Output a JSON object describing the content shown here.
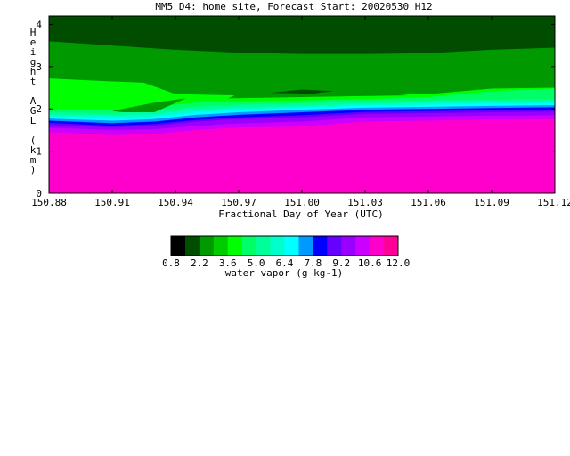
{
  "chart_data": {
    "type": "heatmap",
    "title": "MM5_D4: home site,  Forecast Start: 20020530 H12",
    "xlabel": "Fractional Day of Year (UTC)",
    "ylabel": "Height AGL (km)",
    "xlim": [
      150.88,
      151.12
    ],
    "ylim": [
      0,
      4.2
    ],
    "xticks": [
      "150.88",
      "150.91",
      "150.94",
      "150.97",
      "151.00",
      "151.03",
      "151.06",
      "151.09",
      "151.12"
    ],
    "yticks": [
      "0",
      "1",
      "2",
      "3",
      "4"
    ],
    "colorbar": {
      "label": "water vapor (g kg-1)",
      "tick_labels": [
        "0.8",
        "2.2",
        "3.6",
        "5.0",
        "6.4",
        "7.8",
        "9.2",
        "10.6",
        "12.0"
      ],
      "levels": [
        0.8,
        2.2,
        3.6,
        5.0,
        6.4,
        7.8,
        9.2,
        10.6,
        12.0
      ],
      "bins": [
        {
          "min": 0.8,
          "max": 1.5,
          "color": "#000000"
        },
        {
          "min": 1.5,
          "max": 2.2,
          "color": "#004d00"
        },
        {
          "min": 2.2,
          "max": 2.9,
          "color": "#009900"
        },
        {
          "min": 2.9,
          "max": 3.6,
          "color": "#00cc00"
        },
        {
          "min": 3.6,
          "max": 4.3,
          "color": "#00ff00"
        },
        {
          "min": 4.3,
          "max": 5.0,
          "color": "#00ff66"
        },
        {
          "min": 5.0,
          "max": 5.7,
          "color": "#00ff99"
        },
        {
          "min": 5.7,
          "max": 6.4,
          "color": "#00ffcc"
        },
        {
          "min": 6.4,
          "max": 7.1,
          "color": "#00ffff"
        },
        {
          "min": 7.1,
          "max": 7.8,
          "color": "#0099ff"
        },
        {
          "min": 7.8,
          "max": 8.5,
          "color": "#0000ff"
        },
        {
          "min": 8.5,
          "max": 9.2,
          "color": "#6600ff"
        },
        {
          "min": 9.2,
          "max": 9.9,
          "color": "#9900ff"
        },
        {
          "min": 9.9,
          "max": 10.6,
          "color": "#cc00ff"
        },
        {
          "min": 10.6,
          "max": 11.3,
          "color": "#ff00cc"
        },
        {
          "min": 11.3,
          "max": 12.0,
          "color": "#ff0099"
        }
      ]
    },
    "bands": [
      {
        "bin": 14,
        "color": "#ff00cc",
        "upper": [
          [
            150.88,
            1.45
          ],
          [
            150.91,
            1.38
          ],
          [
            150.93,
            1.4
          ],
          [
            150.95,
            1.5
          ],
          [
            150.97,
            1.56
          ],
          [
            151.0,
            1.58
          ],
          [
            151.03,
            1.7
          ],
          [
            151.06,
            1.72
          ],
          [
            151.09,
            1.75
          ],
          [
            151.12,
            1.76
          ]
        ]
      },
      {
        "bin": 13,
        "color": "#cc00ff",
        "upper": [
          [
            150.88,
            1.55
          ],
          [
            150.91,
            1.5
          ],
          [
            150.93,
            1.52
          ],
          [
            150.95,
            1.6
          ],
          [
            150.97,
            1.66
          ],
          [
            151.0,
            1.7
          ],
          [
            151.03,
            1.8
          ],
          [
            151.06,
            1.82
          ],
          [
            151.09,
            1.84
          ],
          [
            151.12,
            1.85
          ]
        ]
      },
      {
        "bin": 12,
        "color": "#9900ff",
        "upper": [
          [
            150.88,
            1.62
          ],
          [
            150.91,
            1.56
          ],
          [
            150.93,
            1.6
          ],
          [
            150.95,
            1.7
          ],
          [
            150.97,
            1.76
          ],
          [
            151.0,
            1.8
          ],
          [
            151.03,
            1.88
          ],
          [
            151.06,
            1.9
          ],
          [
            151.09,
            1.92
          ],
          [
            151.12,
            1.94
          ]
        ]
      },
      {
        "bin": 11,
        "color": "#6600ff",
        "upper": [
          [
            150.88,
            1.67
          ],
          [
            150.91,
            1.6
          ],
          [
            150.93,
            1.64
          ],
          [
            150.95,
            1.74
          ],
          [
            150.97,
            1.8
          ],
          [
            151.0,
            1.85
          ],
          [
            151.03,
            1.93
          ],
          [
            151.06,
            1.95
          ],
          [
            151.09,
            1.97
          ],
          [
            151.12,
            1.99
          ]
        ]
      },
      {
        "bin": 10,
        "color": "#0000ff",
        "upper": [
          [
            150.88,
            1.72
          ],
          [
            150.91,
            1.66
          ],
          [
            150.93,
            1.7
          ],
          [
            150.95,
            1.8
          ],
          [
            150.97,
            1.86
          ],
          [
            151.0,
            1.92
          ],
          [
            151.03,
            1.98
          ],
          [
            151.06,
            2.0
          ],
          [
            151.09,
            2.02
          ],
          [
            151.12,
            2.04
          ]
        ]
      },
      {
        "bin": 9,
        "color": "#0099ff",
        "upper": [
          [
            150.88,
            1.77
          ],
          [
            150.91,
            1.72
          ],
          [
            150.93,
            1.76
          ],
          [
            150.95,
            1.86
          ],
          [
            150.97,
            1.92
          ],
          [
            151.0,
            1.98
          ],
          [
            151.03,
            2.03
          ],
          [
            151.06,
            2.05
          ],
          [
            151.09,
            2.07
          ],
          [
            151.12,
            2.09
          ]
        ]
      },
      {
        "bin": 8,
        "color": "#00ffff",
        "upper": [
          [
            150.88,
            1.82
          ],
          [
            150.91,
            1.78
          ],
          [
            150.93,
            1.82
          ],
          [
            150.95,
            1.92
          ],
          [
            150.97,
            1.98
          ],
          [
            151.0,
            2.03
          ],
          [
            151.03,
            2.08
          ],
          [
            151.06,
            2.1
          ],
          [
            151.09,
            2.12
          ],
          [
            151.12,
            2.14
          ]
        ]
      },
      {
        "bin": 7,
        "color": "#00ffcc",
        "upper": [
          [
            150.88,
            1.86
          ],
          [
            150.91,
            1.84
          ],
          [
            150.93,
            1.88
          ],
          [
            150.95,
            1.98
          ],
          [
            150.97,
            2.03
          ],
          [
            151.0,
            2.07
          ],
          [
            151.03,
            2.12
          ],
          [
            151.06,
            2.15
          ],
          [
            151.09,
            2.17
          ],
          [
            151.12,
            2.19
          ]
        ]
      },
      {
        "bin": 6,
        "color": "#00ff99",
        "upper": [
          [
            150.88,
            1.92
          ],
          [
            150.91,
            1.9
          ],
          [
            150.93,
            1.95
          ],
          [
            150.95,
            2.05
          ],
          [
            150.97,
            2.1
          ],
          [
            151.0,
            2.13
          ],
          [
            151.03,
            2.18
          ],
          [
            151.06,
            2.2
          ],
          [
            151.09,
            2.22
          ],
          [
            151.12,
            2.24
          ]
        ]
      },
      {
        "bin": 5,
        "color": "#00ff66",
        "upper": [
          [
            150.88,
            1.98
          ],
          [
            150.91,
            1.98
          ],
          [
            150.93,
            2.05
          ],
          [
            150.95,
            2.15
          ],
          [
            150.97,
            2.18
          ],
          [
            151.0,
            2.2
          ],
          [
            151.03,
            2.23
          ],
          [
            151.06,
            2.28
          ],
          [
            151.09,
            2.42
          ],
          [
            151.12,
            2.48
          ]
        ]
      },
      {
        "bin": 4,
        "color": "#00ff00",
        "upper": [
          [
            150.88,
            2.72
          ],
          [
            150.91,
            2.65
          ],
          [
            150.925,
            2.62
          ],
          [
            150.94,
            2.35
          ],
          [
            150.97,
            2.32
          ],
          [
            151.0,
            2.3
          ],
          [
            151.03,
            2.32
          ],
          [
            151.06,
            2.35
          ],
          [
            151.09,
            2.48
          ],
          [
            151.12,
            2.5
          ]
        ]
      },
      {
        "bin": 2,
        "color": "#009900",
        "upper": [
          [
            150.88,
            3.6
          ],
          [
            150.91,
            3.5
          ],
          [
            150.94,
            3.4
          ],
          [
            150.97,
            3.33
          ],
          [
            151.0,
            3.3
          ],
          [
            151.03,
            3.3
          ],
          [
            151.06,
            3.32
          ],
          [
            151.09,
            3.4
          ],
          [
            151.12,
            3.45
          ]
        ]
      },
      {
        "bin": 1,
        "color": "#004d00",
        "upper": [
          [
            150.88,
            4.2
          ],
          [
            151.12,
            4.2
          ]
        ]
      }
    ],
    "patches": [
      {
        "bin": 2,
        "color": "#009900",
        "points": [
          [
            150.91,
            1.95
          ],
          [
            150.93,
            2.15
          ],
          [
            150.945,
            2.25
          ],
          [
            150.93,
            1.92
          ],
          [
            150.915,
            1.92
          ]
        ]
      },
      {
        "bin": 2,
        "color": "#009900",
        "points": [
          [
            150.965,
            2.25
          ],
          [
            150.975,
            2.48
          ],
          [
            151.0,
            2.55
          ],
          [
            151.025,
            2.5
          ],
          [
            151.04,
            2.38
          ],
          [
            151.05,
            2.32
          ],
          [
            151.0,
            2.28
          ]
        ]
      },
      {
        "bin": 1,
        "color": "#004d00",
        "points": [
          [
            150.985,
            2.38
          ],
          [
            151.0,
            2.46
          ],
          [
            151.015,
            2.42
          ],
          [
            151.005,
            2.36
          ]
        ]
      }
    ]
  }
}
